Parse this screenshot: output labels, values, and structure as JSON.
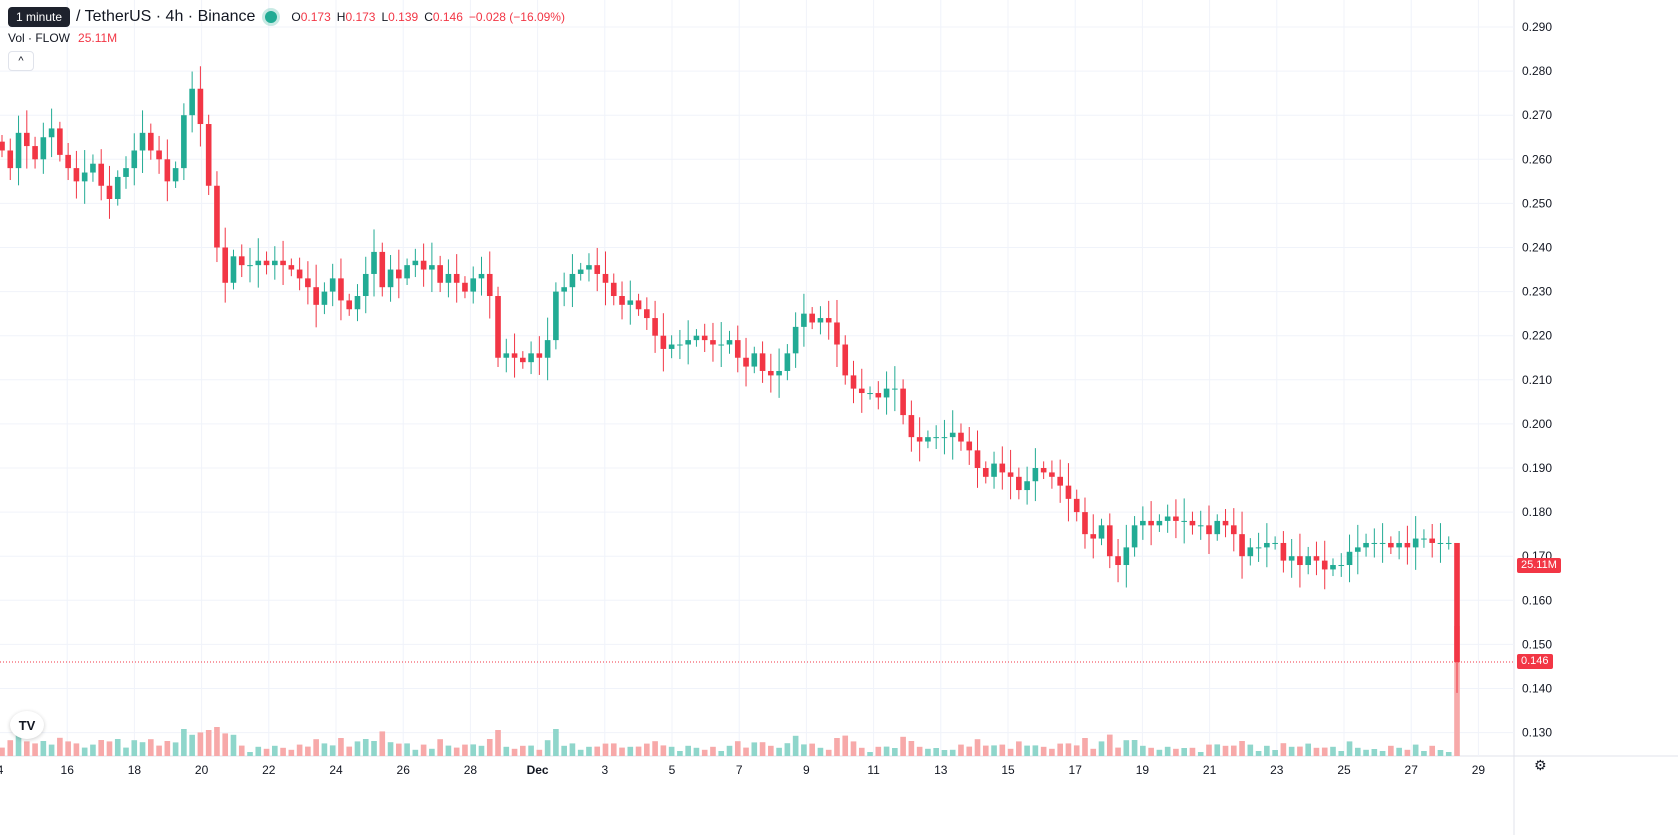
{
  "legend": {
    "interval_badge": "1 minute",
    "symbol_text": "/ TetherUS · 4h · Binance",
    "open_label": "O",
    "open": "0.173",
    "high_label": "H",
    "high": "0.173",
    "low_label": "L",
    "low": "0.139",
    "close_label": "C",
    "close": "0.146",
    "change": "−0.028 (−16.09%)"
  },
  "volume_legend": {
    "label": "Vol · FLOW",
    "value": "25.11M"
  },
  "price_tags": {
    "volume": "25.11M",
    "last_price": "0.146"
  },
  "icons": {
    "collapse": "chevron-up-icon",
    "logo": "tradingview-logo-icon",
    "settings": "gear-icon"
  },
  "colors": {
    "up": "#22ab94",
    "down": "#f23645",
    "vol_up": "#8fd6cb",
    "vol_down": "#f7a9a9",
    "grid": "#f0f3fa"
  },
  "chart_data": {
    "type": "candlestick",
    "timeframe": "4h",
    "y_ticks": [
      "0.290",
      "0.280",
      "0.270",
      "0.260",
      "0.250",
      "0.240",
      "0.230",
      "0.220",
      "0.210",
      "0.200",
      "0.190",
      "0.180",
      "0.170",
      "0.160",
      "0.150",
      "0.140",
      "0.130"
    ],
    "x_ticks": [
      "4",
      "16",
      "18",
      "20",
      "22",
      "24",
      "26",
      "28",
      "Dec",
      "3",
      "5",
      "7",
      "9",
      "11",
      "13",
      "15",
      "17",
      "19",
      "21",
      "23",
      "25",
      "27",
      "29"
    ],
    "ylim": [
      0.125,
      0.29
    ],
    "last_price": 0.146,
    "grid": true,
    "closes": [
      0.262,
      0.258,
      0.266,
      0.263,
      0.26,
      0.265,
      0.267,
      0.261,
      0.258,
      0.255,
      0.257,
      0.259,
      0.254,
      0.251,
      0.256,
      0.258,
      0.262,
      0.266,
      0.262,
      0.26,
      0.255,
      0.258,
      0.27,
      0.276,
      0.268,
      0.254,
      0.24,
      0.232,
      0.238,
      0.236,
      0.236,
      0.237,
      0.236,
      0.237,
      0.236,
      0.235,
      0.233,
      0.231,
      0.227,
      0.23,
      0.233,
      0.228,
      0.226,
      0.229,
      0.234,
      0.239,
      0.231,
      0.235,
      0.233,
      0.236,
      0.237,
      0.235,
      0.236,
      0.232,
      0.234,
      0.232,
      0.23,
      0.233,
      0.234,
      0.229,
      0.215,
      0.216,
      0.215,
      0.214,
      0.216,
      0.215,
      0.219,
      0.23,
      0.231,
      0.234,
      0.235,
      0.236,
      0.234,
      0.232,
      0.229,
      0.227,
      0.228,
      0.226,
      0.224,
      0.22,
      0.217,
      0.218,
      0.218,
      0.219,
      0.22,
      0.219,
      0.218,
      0.218,
      0.219,
      0.215,
      0.213,
      0.216,
      0.212,
      0.211,
      0.212,
      0.216,
      0.222,
      0.225,
      0.223,
      0.224,
      0.223,
      0.218,
      0.211,
      0.208,
      0.207,
      0.207,
      0.206,
      0.208,
      0.208,
      0.202,
      0.197,
      0.196,
      0.197,
      0.197,
      0.197,
      0.198,
      0.196,
      0.194,
      0.19,
      0.188,
      0.191,
      0.189,
      0.188,
      0.185,
      0.187,
      0.19,
      0.189,
      0.188,
      0.186,
      0.183,
      0.18,
      0.175,
      0.174,
      0.177,
      0.17,
      0.168,
      0.172,
      0.177,
      0.178,
      0.177,
      0.178,
      0.179,
      0.178,
      0.178,
      0.177,
      0.177,
      0.175,
      0.178,
      0.177,
      0.175,
      0.17,
      0.172,
      0.172,
      0.173,
      0.173,
      0.169,
      0.17,
      0.168,
      0.17,
      0.169,
      0.167,
      0.168,
      0.168,
      0.171,
      0.172,
      0.173,
      0.173,
      0.173,
      0.172,
      0.173,
      0.172,
      0.174,
      0.174,
      0.173,
      0.173,
      0.173,
      0.146
    ]
  }
}
